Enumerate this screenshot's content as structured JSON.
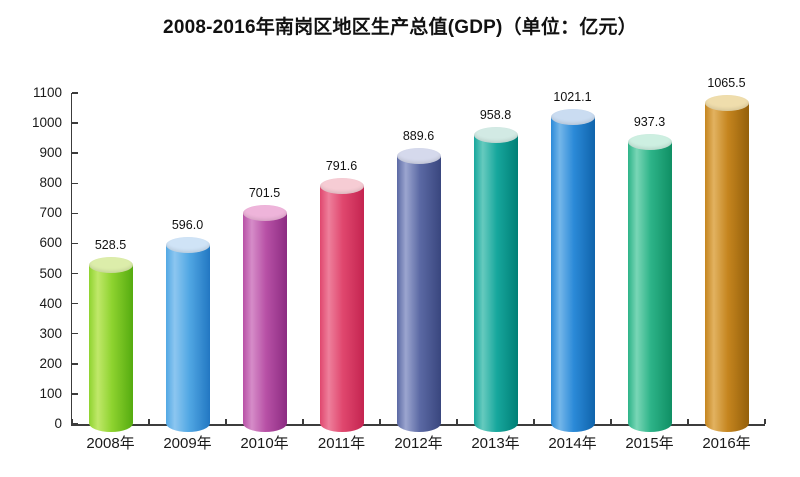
{
  "title": "2008-2016年南岗区地区生产总值(GDP)（单位：亿元）",
  "chart_data": {
    "type": "bar",
    "subtype": "3d-cylinder",
    "title": "2008-2016年南岗区地区生产总值(GDP)（单位：亿元）",
    "unit": "亿元",
    "categories": [
      "2008年",
      "2009年",
      "2010年",
      "2011年",
      "2012年",
      "2013年",
      "2014年",
      "2015年",
      "2016年"
    ],
    "values": [
      528.5,
      596.0,
      701.5,
      791.6,
      889.6,
      958.8,
      1021.1,
      937.3,
      1065.5
    ],
    "value_labels": [
      "528.5",
      "596.0",
      "701.5",
      "791.6",
      "889.6",
      "958.8",
      "1021.1",
      "937.3",
      "1065.5"
    ],
    "xlabel": "",
    "ylabel": "",
    "ylim": [
      0,
      1100
    ],
    "ytick_step": 100,
    "grid": false,
    "legend": "none",
    "background_color": "#ffffff",
    "axis_color": "#3c3c3c",
    "text_color": "#1a1a1a",
    "series_colors": [
      {
        "name": "yellow-green",
        "top": "#dcedaa",
        "light": "#c0e86a",
        "main": "#8ed32f",
        "dark": "#55ab10"
      },
      {
        "name": "light-blue",
        "top": "#cfe3f6",
        "light": "#8cc6f0",
        "main": "#52a8e4",
        "dark": "#2277c2"
      },
      {
        "name": "magenta",
        "top": "#eeb4da",
        "light": "#d58cc8",
        "main": "#b851a6",
        "dark": "#8c2c82"
      },
      {
        "name": "crimson",
        "top": "#f6ccd4",
        "light": "#ee7f9b",
        "main": "#e0476e",
        "dark": "#c42450"
      },
      {
        "name": "slate-blue",
        "top": "#d5d9ec",
        "light": "#9ba5cf",
        "main": "#5b69a4",
        "dark": "#39467e"
      },
      {
        "name": "teal",
        "top": "#d2eae4",
        "light": "#66cabe",
        "main": "#17a79d",
        "dark": "#007f76"
      },
      {
        "name": "blue",
        "top": "#cadcf1",
        "light": "#74b6e9",
        "main": "#2b8ad8",
        "dark": "#0f63ab"
      },
      {
        "name": "emerald",
        "top": "#cdefe1",
        "light": "#79d6b6",
        "main": "#2db388",
        "dark": "#0f8f64"
      },
      {
        "name": "ochre",
        "top": "#efddac",
        "light": "#e2b260",
        "main": "#c5851f",
        "dark": "#945f0a"
      }
    ]
  }
}
